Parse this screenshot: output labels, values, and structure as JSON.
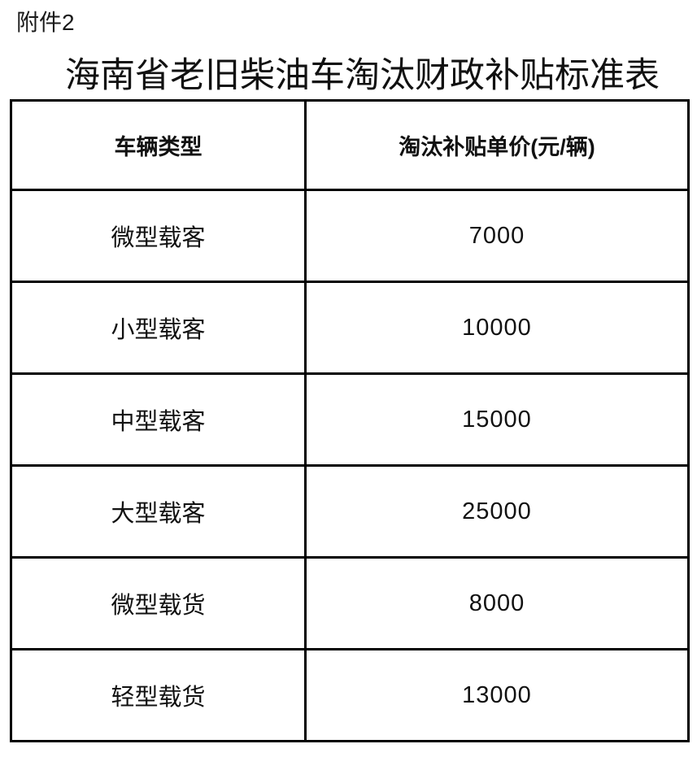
{
  "page": {
    "attachment_label": "附件2",
    "title": "海南省老旧柴油车淘汰财政补贴标准表"
  },
  "table": {
    "columns": [
      "车辆类型",
      "淘汰补贴单价(元/辆)"
    ],
    "rows": [
      {
        "type": "微型载客",
        "price": "7000"
      },
      {
        "type": "小型载客",
        "price": "10000"
      },
      {
        "type": "中型载客",
        "price": "15000"
      },
      {
        "type": "大型载客",
        "price": "25000"
      },
      {
        "type": "微型载货",
        "price": "8000"
      },
      {
        "type": "轻型载货",
        "price": "13000"
      }
    ]
  },
  "colors": {
    "text": "#111111",
    "border": "#000000",
    "background": "#ffffff"
  }
}
